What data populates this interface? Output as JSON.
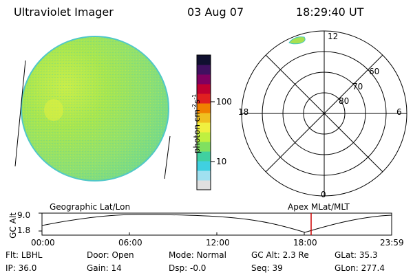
{
  "header": {
    "instrument": "Ultraviolet Imager",
    "date": "03 Aug 07",
    "time": "18:29:40 UT"
  },
  "colorbar": {
    "unit_label": "photon cm",
    "unit_exp1": "-2",
    "unit_mid": "s",
    "unit_exp2": "-1",
    "tick_100": "100",
    "tick_10": "10",
    "colors": [
      "#e0e0e0",
      "#a0e0f0",
      "#40d0e0",
      "#40d0a0",
      "#80e060",
      "#c0f040",
      "#f0f040",
      "#f0c020",
      "#f08000",
      "#e02020",
      "#c00030",
      "#800060",
      "#401060",
      "#101030"
    ]
  },
  "polar_plot": {
    "lat_labels": [
      "60",
      "70",
      "80"
    ],
    "mlt_labels": {
      "top": "12",
      "bottom": "0",
      "left": "18",
      "right": "6"
    }
  },
  "orbit_plot": {
    "ylabel": "GC Alt",
    "y_max_label": "9.0",
    "y_min_label": "1.8",
    "left_title": "Geographic Lat/Lon",
    "right_title": "Apex MLat/MLT",
    "x_ticks": [
      "00:00",
      "06:00",
      "12:00",
      "18:00",
      "23:59"
    ],
    "marker_time": "18:29:40",
    "marker_color": "#cc0000"
  },
  "info": {
    "filter_label": "Flt:",
    "filter": "LBHL",
    "ip_label": "IP:",
    "ip": "36.0",
    "door_label": "Door:",
    "door": "Open",
    "gain_label": "Gain:",
    "gain": "14",
    "mode_label": "Mode:",
    "mode": "Normal",
    "dsp_label": "Dsp:",
    "dsp": "-0.0",
    "gcalt_label": "GC Alt:",
    "gcalt": "2.3 Re",
    "seq_label": "Seq:",
    "seq": "39",
    "glat_label": "GLat:",
    "glat": "35.3",
    "glon_label": "GLon:",
    "glon": "277.4"
  }
}
